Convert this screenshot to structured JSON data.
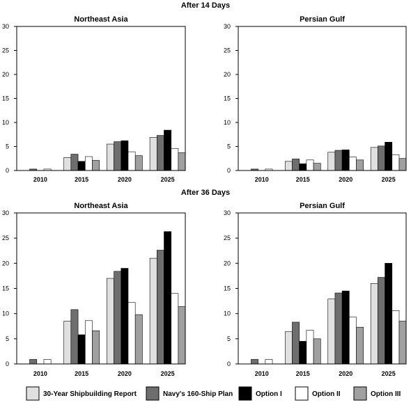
{
  "chart_data": {
    "type": "bar",
    "categories": [
      "2010",
      "2015",
      "2020",
      "2025"
    ],
    "series_names": [
      "30-Year Shipbuilding Report",
      "Navy's 160-Ship Plan",
      "Option I",
      "Option II",
      "Option III"
    ],
    "colors": [
      "#e0e0e0",
      "#6e6e6e",
      "#000000",
      "#ffffff",
      "#a0a0a0"
    ],
    "ylim": [
      0,
      30
    ],
    "yticks": [
      0,
      5,
      10,
      15,
      20,
      25,
      30
    ],
    "sections": [
      {
        "title": "After 14 Days",
        "panels": [
          {
            "title": "Northeast Asia",
            "series": [
              {
                "name": "30-Year Shipbuilding Report",
                "values": [
                  0.0,
                  2.7,
                  5.5,
                  6.9
                ]
              },
              {
                "name": "Navy's 160-Ship Plan",
                "values": [
                  0.3,
                  3.4,
                  6.0,
                  7.3
                ]
              },
              {
                "name": "Option I",
                "values": [
                  0.0,
                  1.9,
                  6.2,
                  8.4
                ]
              },
              {
                "name": "Option II",
                "values": [
                  0.3,
                  2.9,
                  3.9,
                  4.6
                ]
              },
              {
                "name": "Option III",
                "values": [
                  0.0,
                  2.1,
                  3.1,
                  3.7
                ]
              }
            ]
          },
          {
            "title": "Persian Gulf",
            "series": [
              {
                "name": "30-Year Shipbuilding Report",
                "values": [
                  0.0,
                  1.9,
                  3.8,
                  4.8
                ]
              },
              {
                "name": "Navy's 160-Ship Plan",
                "values": [
                  0.3,
                  2.4,
                  4.2,
                  5.1
                ]
              },
              {
                "name": "Option I",
                "values": [
                  0.0,
                  1.4,
                  4.3,
                  5.9
                ]
              },
              {
                "name": "Option II",
                "values": [
                  0.3,
                  2.2,
                  2.8,
                  3.3
                ]
              },
              {
                "name": "Option III",
                "values": [
                  0.0,
                  1.5,
                  2.2,
                  2.5
                ]
              }
            ]
          }
        ]
      },
      {
        "title": "After 36 Days",
        "panels": [
          {
            "title": "Northeast Asia",
            "series": [
              {
                "name": "30-Year Shipbuilding Report",
                "values": [
                  0.0,
                  8.5,
                  17.0,
                  21.0
                ]
              },
              {
                "name": "Navy's 160-Ship Plan",
                "values": [
                  0.9,
                  10.8,
                  18.4,
                  22.6
                ]
              },
              {
                "name": "Option I",
                "values": [
                  0.0,
                  5.8,
                  19.0,
                  26.3
                ]
              },
              {
                "name": "Option II",
                "values": [
                  0.9,
                  8.6,
                  12.2,
                  14.0
                ]
              },
              {
                "name": "Option III",
                "values": [
                  0.0,
                  6.6,
                  9.8,
                  11.4
                ]
              }
            ]
          },
          {
            "title": "Persian Gulf",
            "series": [
              {
                "name": "30-Year Shipbuilding Report",
                "values": [
                  0.0,
                  6.4,
                  12.9,
                  16.0
                ]
              },
              {
                "name": "Navy's 160-Ship Plan",
                "values": [
                  0.9,
                  8.3,
                  14.1,
                  17.2
                ]
              },
              {
                "name": "Option I",
                "values": [
                  0.0,
                  4.5,
                  14.5,
                  20.0
                ]
              },
              {
                "name": "Option II",
                "values": [
                  0.9,
                  6.7,
                  9.3,
                  10.6
                ]
              },
              {
                "name": "Option III",
                "values": [
                  0.0,
                  5.0,
                  7.3,
                  8.5
                ]
              }
            ]
          }
        ]
      }
    ],
    "legend_position": "bottom",
    "grid": false
  }
}
